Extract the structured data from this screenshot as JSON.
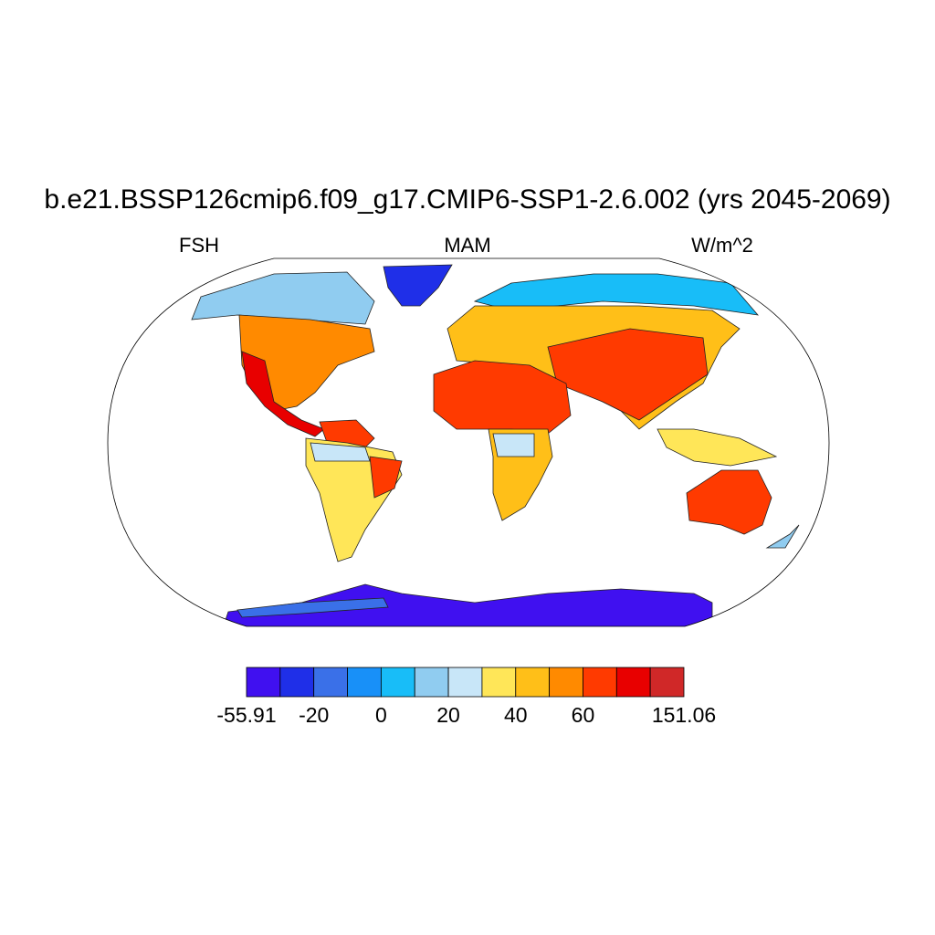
{
  "title": "b.e21.BSSP126cmip6.f09_g17.CMIP6-SSP1-2.6.002 (yrs 2045-2069)",
  "left_string": "FSH",
  "center_string": "MAM",
  "right_string": "W/m^2",
  "colorbar": {
    "colors": [
      "#4010f0",
      "#1f2fe8",
      "#3a70e8",
      "#1890f8",
      "#18bdf8",
      "#90ccf0",
      "#c8e6f8",
      "#ffe658",
      "#ffbf18",
      "#ff8a00",
      "#ff3a00",
      "#e80000",
      "#d02828"
    ],
    "edge_labels": [
      -55.91,
      null,
      -20,
      null,
      0,
      null,
      20,
      null,
      40,
      null,
      60,
      null,
      null,
      151.06
    ]
  }
}
